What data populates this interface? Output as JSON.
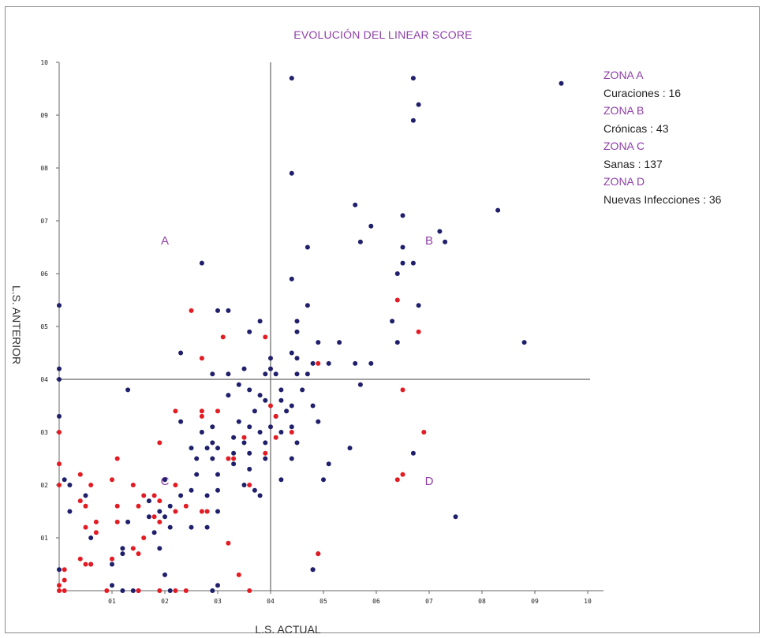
{
  "chart_data": {
    "type": "scatter",
    "title": "EVOLUCIÓN DEL LINEAR SCORE",
    "xlabel": "L.S. ACTUAL",
    "ylabel": "L.S. ANTERIOR",
    "xlim": [
      0,
      10
    ],
    "ylim": [
      0,
      10
    ],
    "x_ticks": [
      "01",
      "02",
      "03",
      "04",
      "05",
      "06",
      "07",
      "08",
      "09",
      "10"
    ],
    "y_ticks": [
      "01",
      "02",
      "03",
      "04",
      "05",
      "06",
      "07",
      "08",
      "09",
      "10"
    ],
    "thresholds": {
      "x": 4,
      "y": 4
    },
    "grid": false,
    "legend_position": "top-right",
    "legend": [
      {
        "zone": "ZONA A",
        "desc": "Curaciones : 16"
      },
      {
        "zone": "ZONA B",
        "desc": "Crónicas : 43"
      },
      {
        "zone": "ZONA C",
        "desc": "Sanas : 137"
      },
      {
        "zone": "ZONA D",
        "desc": "Nuevas Infecciones : 36"
      }
    ],
    "zone_labels": [
      {
        "text": "A",
        "x": 2.0,
        "y": 6.55
      },
      {
        "text": "B",
        "x": 7.0,
        "y": 6.55
      },
      {
        "text": "C",
        "x": 2.0,
        "y": 2.0
      },
      {
        "text": "D",
        "x": 7.0,
        "y": 2.0
      }
    ],
    "colors": {
      "navy": "#1f1f6b",
      "red": "#e31b23",
      "zone": "#8e3fa8",
      "axis": "#666666"
    },
    "series": [
      {
        "color": "#1f1f6b",
        "points": [
          [
            4.4,
            9.7
          ],
          [
            6.7,
            9.7
          ],
          [
            9.5,
            9.6
          ],
          [
            6.8,
            9.2
          ],
          [
            6.7,
            8.9
          ],
          [
            4.4,
            7.9
          ],
          [
            5.6,
            7.3
          ],
          [
            6.5,
            7.1
          ],
          [
            8.3,
            7.2
          ],
          [
            5.9,
            6.9
          ],
          [
            7.2,
            6.8
          ],
          [
            5.7,
            6.6
          ],
          [
            7.3,
            6.6
          ],
          [
            4.7,
            6.5
          ],
          [
            6.5,
            6.5
          ],
          [
            2.7,
            6.2
          ],
          [
            6.5,
            6.2
          ],
          [
            6.7,
            6.2
          ],
          [
            6.4,
            6.0
          ],
          [
            4.4,
            5.9
          ],
          [
            0.0,
            5.4
          ],
          [
            4.7,
            5.4
          ],
          [
            6.8,
            5.4
          ],
          [
            3.0,
            5.3
          ],
          [
            3.2,
            5.3
          ],
          [
            3.8,
            5.1
          ],
          [
            4.5,
            5.1
          ],
          [
            6.3,
            5.1
          ],
          [
            3.6,
            4.9
          ],
          [
            4.5,
            4.9
          ],
          [
            8.8,
            4.7
          ],
          [
            4.9,
            4.7
          ],
          [
            5.3,
            4.7
          ],
          [
            6.4,
            4.7
          ],
          [
            4.4,
            4.5
          ],
          [
            2.3,
            4.5
          ],
          [
            4.0,
            4.4
          ],
          [
            4.5,
            4.4
          ],
          [
            4.8,
            4.3
          ],
          [
            5.1,
            4.3
          ],
          [
            5.6,
            4.3
          ],
          [
            5.9,
            4.3
          ],
          [
            0.0,
            4.2
          ],
          [
            3.5,
            4.2
          ],
          [
            3.9,
            4.1
          ],
          [
            4.0,
            4.2
          ],
          [
            2.9,
            4.1
          ],
          [
            3.2,
            4.1
          ],
          [
            4.1,
            4.1
          ],
          [
            4.5,
            4.1
          ],
          [
            4.7,
            4.1
          ],
          [
            0.0,
            4.0
          ],
          [
            3.4,
            3.9
          ],
          [
            1.3,
            3.8
          ],
          [
            3.6,
            3.8
          ],
          [
            4.2,
            3.8
          ],
          [
            4.6,
            3.8
          ],
          [
            5.7,
            3.9
          ],
          [
            3.8,
            3.7
          ],
          [
            3.2,
            3.7
          ],
          [
            3.9,
            3.6
          ],
          [
            4.2,
            3.6
          ],
          [
            4.4,
            3.5
          ],
          [
            4.8,
            3.5
          ],
          [
            3.7,
            3.4
          ],
          [
            4.3,
            3.4
          ],
          [
            4.1,
            3.3
          ],
          [
            0.0,
            3.3
          ],
          [
            3.4,
            3.2
          ],
          [
            3.6,
            3.1
          ],
          [
            2.3,
            3.2
          ],
          [
            2.9,
            3.1
          ],
          [
            4.0,
            3.1
          ],
          [
            4.4,
            3.1
          ],
          [
            4.9,
            3.2
          ],
          [
            3.8,
            3.0
          ],
          [
            4.2,
            3.0
          ],
          [
            2.7,
            3.0
          ],
          [
            3.3,
            2.9
          ],
          [
            2.9,
            2.8
          ],
          [
            3.5,
            2.8
          ],
          [
            3.9,
            2.8
          ],
          [
            4.5,
            2.8
          ],
          [
            2.5,
            2.7
          ],
          [
            2.8,
            2.7
          ],
          [
            3.0,
            2.7
          ],
          [
            3.3,
            2.6
          ],
          [
            3.6,
            2.6
          ],
          [
            2.6,
            2.5
          ],
          [
            2.9,
            2.5
          ],
          [
            3.9,
            2.5
          ],
          [
            4.4,
            2.5
          ],
          [
            6.7,
            2.6
          ],
          [
            5.5,
            2.7
          ],
          [
            5.1,
            2.4
          ],
          [
            3.3,
            2.4
          ],
          [
            3.6,
            2.3
          ],
          [
            3.0,
            2.2
          ],
          [
            2.6,
            2.2
          ],
          [
            2.0,
            2.1
          ],
          [
            4.2,
            2.1
          ],
          [
            5.0,
            2.1
          ],
          [
            0.1,
            2.1
          ],
          [
            0.2,
            2.0
          ],
          [
            3.7,
            1.9
          ],
          [
            3.5,
            2.0
          ],
          [
            3.0,
            1.9
          ],
          [
            2.5,
            1.9
          ],
          [
            2.8,
            1.8
          ],
          [
            3.8,
            1.8
          ],
          [
            0.5,
            1.8
          ],
          [
            1.7,
            1.7
          ],
          [
            2.3,
            1.8
          ],
          [
            2.1,
            1.6
          ],
          [
            3.0,
            1.5
          ],
          [
            0.2,
            1.5
          ],
          [
            1.9,
            1.5
          ],
          [
            1.7,
            1.4
          ],
          [
            2.0,
            1.4
          ],
          [
            7.5,
            1.4
          ],
          [
            1.3,
            1.3
          ],
          [
            2.1,
            1.2
          ],
          [
            2.5,
            1.2
          ],
          [
            2.8,
            1.2
          ],
          [
            1.8,
            1.1
          ],
          [
            0.6,
            1.0
          ],
          [
            1.2,
            0.8
          ],
          [
            1.9,
            0.8
          ],
          [
            1.2,
            0.7
          ],
          [
            4.9,
            0.7
          ],
          [
            1.0,
            0.5
          ],
          [
            0.6,
            0.5
          ],
          [
            4.8,
            0.4
          ],
          [
            0.0,
            0.4
          ],
          [
            2.0,
            0.3
          ],
          [
            3.0,
            0.1
          ],
          [
            1.0,
            0.1
          ],
          [
            1.2,
            0.0
          ],
          [
            1.4,
            0.0
          ],
          [
            1.5,
            0.0
          ],
          [
            2.1,
            0.0
          ],
          [
            2.9,
            0.0
          ],
          [
            4.8,
            0.4
          ]
        ]
      },
      {
        "color": "#e31b23",
        "points": [
          [
            2.5,
            5.3
          ],
          [
            3.1,
            4.8
          ],
          [
            3.9,
            4.8
          ],
          [
            6.4,
            5.5
          ],
          [
            6.8,
            4.9
          ],
          [
            2.7,
            4.4
          ],
          [
            4.9,
            4.3
          ],
          [
            6.5,
            3.8
          ],
          [
            3.0,
            3.4
          ],
          [
            2.7,
            3.4
          ],
          [
            2.2,
            3.4
          ],
          [
            2.7,
            3.3
          ],
          [
            4.0,
            3.5
          ],
          [
            4.1,
            3.3
          ],
          [
            6.9,
            3.0
          ],
          [
            0.0,
            3.0
          ],
          [
            4.4,
            3.0
          ],
          [
            4.1,
            2.9
          ],
          [
            3.5,
            2.9
          ],
          [
            3.2,
            2.5
          ],
          [
            3.3,
            2.5
          ],
          [
            3.9,
            2.6
          ],
          [
            1.9,
            2.8
          ],
          [
            1.1,
            2.5
          ],
          [
            0.0,
            2.4
          ],
          [
            0.4,
            2.2
          ],
          [
            6.5,
            2.2
          ],
          [
            6.4,
            2.1
          ],
          [
            0.0,
            2.0
          ],
          [
            1.0,
            2.1
          ],
          [
            0.6,
            2.0
          ],
          [
            1.4,
            2.0
          ],
          [
            2.2,
            2.0
          ],
          [
            3.6,
            2.0
          ],
          [
            1.6,
            1.8
          ],
          [
            1.8,
            1.8
          ],
          [
            1.9,
            1.7
          ],
          [
            1.1,
            1.6
          ],
          [
            0.5,
            1.6
          ],
          [
            0.4,
            1.7
          ],
          [
            1.5,
            1.6
          ],
          [
            2.4,
            1.6
          ],
          [
            2.2,
            1.5
          ],
          [
            2.7,
            1.5
          ],
          [
            2.8,
            1.5
          ],
          [
            1.8,
            1.4
          ],
          [
            1.9,
            1.3
          ],
          [
            0.7,
            1.3
          ],
          [
            0.5,
            1.2
          ],
          [
            1.1,
            1.3
          ],
          [
            0.7,
            1.1
          ],
          [
            1.6,
            1.0
          ],
          [
            3.2,
            0.9
          ],
          [
            1.4,
            0.8
          ],
          [
            1.5,
            0.7
          ],
          [
            0.4,
            0.6
          ],
          [
            0.5,
            0.5
          ],
          [
            0.1,
            0.4
          ],
          [
            3.4,
            0.3
          ],
          [
            0.1,
            0.2
          ],
          [
            0.0,
            0.1
          ],
          [
            0.1,
            0.0
          ],
          [
            0.9,
            0.0
          ],
          [
            1.5,
            0.0
          ],
          [
            1.9,
            0.0
          ],
          [
            2.2,
            0.0
          ],
          [
            2.4,
            0.0
          ],
          [
            3.6,
            0.0
          ],
          [
            0.0,
            0.0
          ],
          [
            4.9,
            0.7
          ],
          [
            0.6,
            0.5
          ],
          [
            1.0,
            0.6
          ]
        ]
      }
    ]
  }
}
